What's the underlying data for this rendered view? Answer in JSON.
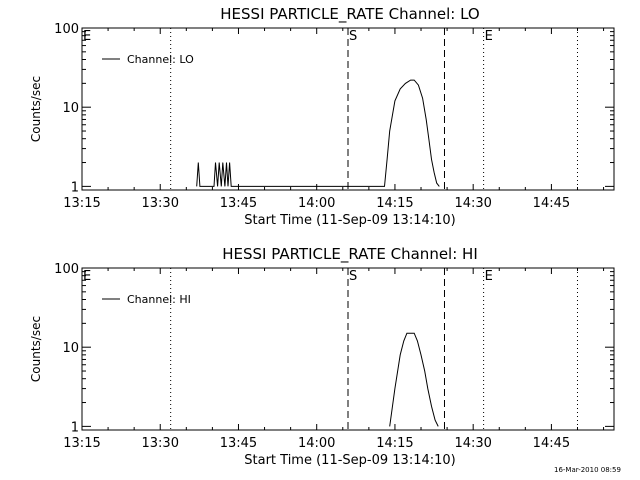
{
  "timestamp": "16-Mar-2010 08:59",
  "chart_data": [
    {
      "type": "line",
      "title": "HESSI PARTICLE_RATE Channel: LO",
      "xlabel": "Start Time (11-Sep-09 13:14:10)",
      "ylabel": "Counts/sec",
      "y_scale": "log",
      "ylim": [
        0.9,
        100
      ],
      "xlim": [
        "13:15",
        "14:57"
      ],
      "x_tick_labels": [
        "13:15",
        "13:30",
        "13:45",
        "14:00",
        "14:15",
        "14:30",
        "14:45"
      ],
      "y_tick_labels": [
        "1",
        "10",
        "100"
      ],
      "legend": {
        "entries": [
          "Channel: LO"
        ],
        "position": "top-left"
      },
      "annotations": [
        {
          "text": "S",
          "time": "14:06",
          "style": "dashed"
        },
        {
          "text": "",
          "time": "14:24.5",
          "style": "dashed"
        },
        {
          "text": "E",
          "time": "13:15",
          "style": "dotted"
        },
        {
          "text": "",
          "time": "13:32",
          "style": "dotted"
        },
        {
          "text": "E",
          "time": "14:32",
          "style": "dotted"
        },
        {
          "text": "",
          "time": "14:50",
          "style": "dotted"
        }
      ],
      "series": [
        {
          "name": "Channel: LO",
          "x": [
            "13:37.0",
            "13:37.3",
            "13:37.6",
            "13:40.3",
            "13:40.6",
            "13:41.0",
            "13:41.3",
            "13:41.7",
            "13:42.0",
            "13:42.4",
            "13:42.7",
            "13:43.0",
            "13:43.3",
            "13:43.6",
            "13:44.0",
            "14:13.0",
            "14:13.5",
            "14:14.0",
            "14:15.0",
            "14:16.0",
            "14:17.0",
            "14:18.0",
            "14:18.7",
            "14:19.5",
            "14:20.3",
            "14:21.0",
            "14:21.5",
            "14:22.0",
            "14:22.5",
            "14:23.0",
            "14:23.5"
          ],
          "y": [
            1,
            2,
            1,
            1,
            2,
            1,
            2,
            1,
            2,
            1,
            2,
            1,
            2,
            1,
            1,
            1,
            2.2,
            5,
            12,
            17,
            20,
            22,
            22,
            19,
            13,
            7,
            4,
            2.2,
            1.5,
            1.1,
            1
          ]
        }
      ]
    },
    {
      "type": "line",
      "title": "HESSI PARTICLE_RATE Channel: HI",
      "xlabel": "Start Time (11-Sep-09 13:14:10)",
      "ylabel": "Counts/sec",
      "y_scale": "log",
      "ylim": [
        0.9,
        100
      ],
      "xlim": [
        "13:15",
        "14:57"
      ],
      "x_tick_labels": [
        "13:15",
        "13:30",
        "13:45",
        "14:00",
        "14:15",
        "14:30",
        "14:45"
      ],
      "y_tick_labels": [
        "1",
        "10",
        "100"
      ],
      "legend": {
        "entries": [
          "Channel: HI"
        ],
        "position": "top-left"
      },
      "annotations": [
        {
          "text": "S",
          "time": "14:06",
          "style": "dashed"
        },
        {
          "text": "",
          "time": "14:24.5",
          "style": "dashed"
        },
        {
          "text": "E",
          "time": "13:15",
          "style": "dotted"
        },
        {
          "text": "",
          "time": "13:32",
          "style": "dotted"
        },
        {
          "text": "E",
          "time": "14:32",
          "style": "dotted"
        },
        {
          "text": "",
          "time": "14:50",
          "style": "dotted"
        }
      ],
      "series": [
        {
          "name": "Channel: HI",
          "x": [
            "14:14.0",
            "14:15.0",
            "14:16.0",
            "14:16.7",
            "14:17.3",
            "14:18.0",
            "14:18.7",
            "14:19.3",
            "14:20.0",
            "14:20.7",
            "14:21.3",
            "14:22.0",
            "14:22.7",
            "14:23.3"
          ],
          "y": [
            1,
            3,
            8,
            12,
            15,
            15,
            15,
            12,
            8,
            5,
            3,
            1.8,
            1.2,
            1
          ]
        }
      ]
    }
  ]
}
